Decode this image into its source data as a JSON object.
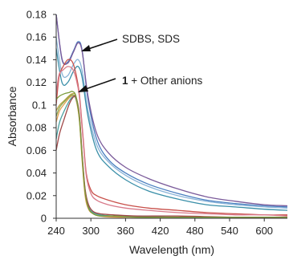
{
  "chart_data": {
    "type": "line",
    "title": "",
    "xlabel": "Wavelength (nm)",
    "ylabel": "Absorbance",
    "xlim": [
      240,
      640
    ],
    "ylim": [
      0,
      0.18
    ],
    "x_ticks": [
      "240",
      "300",
      "360",
      "420",
      "480",
      "540",
      "600"
    ],
    "y_ticks": [
      "0",
      "0.02",
      "0.04",
      "0.06",
      "0.08",
      "0.1",
      "0.12",
      "0.14",
      "0.16",
      "0.18"
    ],
    "grid": false,
    "legend": "none",
    "annotations": [
      {
        "prefix": "",
        "text": "SDBS, SDS"
      },
      {
        "prefix": "1",
        "text": " + Other anions"
      }
    ],
    "series": [
      {
        "color": "#4a7fc0",
        "x": [
          240,
          250,
          260,
          270,
          278,
          285,
          295,
          310,
          330,
          360,
          400,
          450,
          500,
          550,
          600,
          640
        ],
        "y": [
          0.18,
          0.14,
          0.138,
          0.148,
          0.156,
          0.148,
          0.105,
          0.07,
          0.052,
          0.04,
          0.03,
          0.022,
          0.016,
          0.013,
          0.011,
          0.01
        ]
      },
      {
        "color": "#7a5a9a",
        "x": [
          240,
          250,
          260,
          270,
          278,
          285,
          295,
          310,
          330,
          360,
          400,
          450,
          500,
          550,
          600,
          640
        ],
        "y": [
          0.18,
          0.141,
          0.137,
          0.147,
          0.155,
          0.147,
          0.108,
          0.075,
          0.058,
          0.045,
          0.035,
          0.026,
          0.019,
          0.015,
          0.012,
          0.011
        ]
      },
      {
        "color": "#8ab4d8",
        "x": [
          240,
          250,
          260,
          270,
          278,
          285,
          295,
          310,
          330,
          360,
          400,
          450,
          500,
          550,
          600,
          640
        ],
        "y": [
          0.16,
          0.128,
          0.126,
          0.136,
          0.14,
          0.13,
          0.095,
          0.065,
          0.05,
          0.038,
          0.028,
          0.02,
          0.015,
          0.012,
          0.01,
          0.009
        ]
      },
      {
        "color": "#3a8fa8",
        "x": [
          240,
          250,
          260,
          270,
          278,
          285,
          295,
          310,
          330,
          360,
          400,
          450,
          500,
          550,
          600,
          640
        ],
        "y": [
          0.15,
          0.12,
          0.12,
          0.13,
          0.134,
          0.124,
          0.09,
          0.06,
          0.046,
          0.034,
          0.024,
          0.017,
          0.012,
          0.01,
          0.008,
          0.007
        ]
      },
      {
        "color": "#c8504a",
        "x": [
          240,
          245,
          252,
          260,
          268,
          274,
          280,
          286,
          292,
          300,
          310,
          330,
          360,
          400,
          450,
          500,
          550,
          600,
          640
        ],
        "y": [
          0.1,
          0.125,
          0.134,
          0.14,
          0.138,
          0.128,
          0.11,
          0.075,
          0.04,
          0.025,
          0.02,
          0.016,
          0.012,
          0.009,
          0.007,
          0.005,
          0.004,
          0.003,
          0.003
        ]
      },
      {
        "color": "#d87a8a",
        "x": [
          240,
          245,
          252,
          260,
          268,
          274,
          280,
          286,
          292,
          300,
          310,
          330,
          360,
          400,
          450,
          500,
          550,
          600,
          640
        ],
        "y": [
          0.11,
          0.127,
          0.131,
          0.134,
          0.132,
          0.124,
          0.108,
          0.073,
          0.038,
          0.022,
          0.016,
          0.012,
          0.009,
          0.007,
          0.005,
          0.004,
          0.003,
          0.003,
          0.002
        ]
      },
      {
        "color": "#b8a040",
        "x": [
          240,
          246,
          254,
          262,
          268,
          274,
          280,
          285,
          290,
          296,
          304,
          316,
          340,
          380,
          450,
          550,
          640
        ],
        "y": [
          0.095,
          0.1,
          0.104,
          0.108,
          0.11,
          0.108,
          0.09,
          0.055,
          0.025,
          0.01,
          0.005,
          0.003,
          0.002,
          0.002,
          0.001,
          0.001,
          0.001
        ]
      },
      {
        "color": "#8aa850",
        "x": [
          240,
          246,
          254,
          262,
          268,
          274,
          280,
          285,
          290,
          296,
          304,
          316,
          340,
          380,
          450,
          550,
          640
        ],
        "y": [
          0.09,
          0.098,
          0.103,
          0.107,
          0.109,
          0.106,
          0.088,
          0.052,
          0.022,
          0.009,
          0.004,
          0.002,
          0.002,
          0.001,
          0.001,
          0.001,
          0.001
        ]
      },
      {
        "color": "#e0a050",
        "x": [
          240,
          246,
          254,
          262,
          268,
          274,
          280,
          285,
          290,
          296,
          304,
          316,
          340,
          380,
          450,
          550,
          640
        ],
        "y": [
          0.085,
          0.095,
          0.101,
          0.106,
          0.108,
          0.105,
          0.087,
          0.05,
          0.02,
          0.008,
          0.004,
          0.002,
          0.001,
          0.001,
          0.001,
          0.001,
          0.001
        ]
      },
      {
        "color": "#4aa0a0",
        "x": [
          240,
          246,
          254,
          262,
          268,
          274,
          280,
          285,
          290,
          296,
          304,
          316,
          340,
          380,
          450,
          550,
          640
        ],
        "y": [
          0.07,
          0.085,
          0.095,
          0.103,
          0.107,
          0.106,
          0.09,
          0.054,
          0.024,
          0.01,
          0.005,
          0.003,
          0.002,
          0.002,
          0.001,
          0.001,
          0.001
        ]
      },
      {
        "color": "#a04848",
        "x": [
          240,
          246,
          254,
          262,
          268,
          274,
          280,
          285,
          290,
          296,
          304,
          316,
          340,
          380,
          450,
          550,
          640
        ],
        "y": [
          0.06,
          0.075,
          0.088,
          0.1,
          0.106,
          0.107,
          0.092,
          0.056,
          0.026,
          0.012,
          0.006,
          0.004,
          0.003,
          0.002,
          0.002,
          0.001,
          0.001
        ]
      },
      {
        "color": "#7a9a3a",
        "x": [
          240,
          246,
          254,
          262,
          268,
          274,
          280,
          285,
          290,
          296,
          304,
          316,
          340,
          380,
          450,
          550,
          640
        ],
        "y": [
          0.105,
          0.108,
          0.11,
          0.111,
          0.112,
          0.108,
          0.089,
          0.053,
          0.023,
          0.009,
          0.004,
          0.002,
          0.002,
          0.001,
          0.001,
          0.001,
          0.001
        ]
      }
    ]
  }
}
